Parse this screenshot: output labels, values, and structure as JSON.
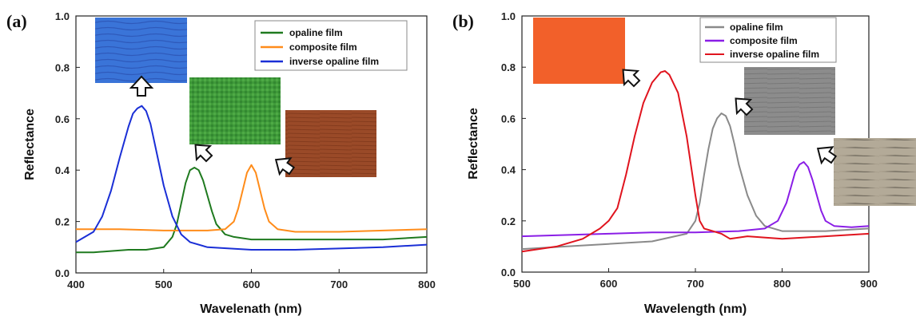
{
  "chart_data": [
    {
      "panel_label": "(a)",
      "type": "line",
      "xlabel": "Wavelenath (nm)",
      "ylabel": "Reflectance",
      "xlim": [
        400,
        800
      ],
      "ylim": [
        0.0,
        1.0
      ],
      "xticks": [
        "400",
        "500",
        "600",
        "700",
        "800"
      ],
      "yticks": [
        "0.0",
        "0.2",
        "0.4",
        "0.6",
        "0.8",
        "1.0"
      ],
      "legend_position": "top-right",
      "series": [
        {
          "name": "opaline film",
          "color": "#1f7a1f",
          "x": [
            400,
            420,
            440,
            460,
            480,
            500,
            510,
            515,
            520,
            525,
            530,
            535,
            540,
            545,
            550,
            555,
            560,
            570,
            580,
            600,
            650,
            700,
            750,
            800
          ],
          "y": [
            0.08,
            0.08,
            0.085,
            0.09,
            0.09,
            0.1,
            0.14,
            0.19,
            0.27,
            0.35,
            0.4,
            0.41,
            0.4,
            0.36,
            0.3,
            0.24,
            0.19,
            0.15,
            0.14,
            0.13,
            0.13,
            0.13,
            0.13,
            0.14
          ]
        },
        {
          "name": "composite film",
          "color": "#ff8c1a",
          "x": [
            400,
            450,
            500,
            550,
            570,
            580,
            585,
            590,
            595,
            600,
            605,
            610,
            615,
            620,
            630,
            650,
            700,
            750,
            800
          ],
          "y": [
            0.17,
            0.17,
            0.165,
            0.165,
            0.17,
            0.2,
            0.25,
            0.32,
            0.39,
            0.42,
            0.39,
            0.32,
            0.25,
            0.2,
            0.17,
            0.16,
            0.16,
            0.165,
            0.17
          ]
        },
        {
          "name": "inverse opaline film",
          "color": "#1a2fd6",
          "x": [
            400,
            420,
            430,
            440,
            450,
            460,
            465,
            470,
            475,
            480,
            485,
            490,
            500,
            510,
            520,
            530,
            550,
            600,
            650,
            700,
            750,
            800
          ],
          "y": [
            0.12,
            0.16,
            0.22,
            0.32,
            0.45,
            0.57,
            0.62,
            0.64,
            0.65,
            0.63,
            0.58,
            0.5,
            0.34,
            0.22,
            0.15,
            0.12,
            0.1,
            0.09,
            0.09,
            0.095,
            0.1,
            0.11
          ]
        }
      ]
    },
    {
      "panel_label": "(b)",
      "type": "line",
      "xlabel": "Wavelength (nm)",
      "ylabel": "Reflectance",
      "xlim": [
        500,
        900
      ],
      "ylim": [
        0.0,
        1.0
      ],
      "xticks": [
        "500",
        "600",
        "700",
        "800",
        "900"
      ],
      "yticks": [
        "0.0",
        "0.2",
        "0.4",
        "0.6",
        "0.8",
        "1.0"
      ],
      "legend_position": "top-right",
      "series": [
        {
          "name": "opaline film",
          "color": "#8a8a8a",
          "x": [
            500,
            550,
            600,
            650,
            690,
            700,
            705,
            710,
            715,
            720,
            725,
            730,
            735,
            740,
            745,
            750,
            760,
            770,
            780,
            800,
            850,
            900
          ],
          "y": [
            0.09,
            0.1,
            0.11,
            0.12,
            0.15,
            0.2,
            0.27,
            0.38,
            0.48,
            0.56,
            0.6,
            0.62,
            0.61,
            0.57,
            0.5,
            0.42,
            0.3,
            0.22,
            0.18,
            0.16,
            0.16,
            0.17
          ]
        },
        {
          "name": "composite film",
          "color": "#8a1ee6",
          "x": [
            500,
            550,
            600,
            650,
            700,
            750,
            780,
            795,
            805,
            810,
            815,
            820,
            825,
            830,
            835,
            840,
            845,
            850,
            860,
            880,
            900
          ],
          "y": [
            0.14,
            0.145,
            0.15,
            0.155,
            0.155,
            0.16,
            0.17,
            0.2,
            0.27,
            0.33,
            0.39,
            0.42,
            0.43,
            0.41,
            0.36,
            0.3,
            0.24,
            0.2,
            0.18,
            0.175,
            0.18
          ]
        },
        {
          "name": "inverse opaline film",
          "color": "#e0141e",
          "x": [
            500,
            540,
            570,
            590,
            600,
            610,
            620,
            630,
            640,
            650,
            660,
            665,
            670,
            680,
            690,
            700,
            705,
            710,
            720,
            730,
            740,
            760,
            800,
            850,
            900
          ],
          "y": [
            0.08,
            0.1,
            0.13,
            0.17,
            0.2,
            0.25,
            0.38,
            0.53,
            0.66,
            0.74,
            0.78,
            0.785,
            0.77,
            0.7,
            0.53,
            0.3,
            0.2,
            0.17,
            0.16,
            0.15,
            0.13,
            0.14,
            0.13,
            0.14,
            0.15
          ]
        }
      ]
    }
  ],
  "colors": {
    "axis": "#222222",
    "arrow_fill": "#ffffff"
  },
  "insets": {
    "a": [
      {
        "name": "blue-micrograph",
        "fill": "#3a74d8",
        "streak": "#2a4fb0"
      },
      {
        "name": "green-micrograph",
        "fill": "#3f9a3a",
        "streak": "#2a7a2a"
      },
      {
        "name": "brown-micrograph",
        "fill": "#9a4a28",
        "streak": "#7a3418"
      }
    ],
    "b": [
      {
        "name": "orange-micrograph",
        "fill": "#f2602a",
        "streak": "#e04a1a"
      },
      {
        "name": "gray-micrograph",
        "fill": "#8c8c8c",
        "streak": "#6e6e6e"
      },
      {
        "name": "beige-micrograph",
        "fill": "#b3aa98",
        "streak": "#9a917e"
      }
    ]
  }
}
